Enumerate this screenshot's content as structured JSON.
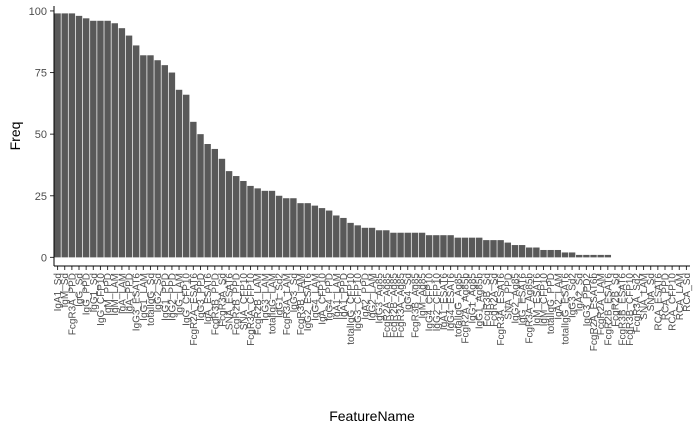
{
  "chart_data": {
    "type": "bar",
    "xlabel": "FeatureName",
    "ylabel": "Freq",
    "ylim": [
      -3.5,
      102
    ],
    "yticks": [
      0,
      25,
      50,
      75,
      100
    ],
    "grid": false,
    "bar_color": "#595959",
    "categories": [
      "IgA1_Sd",
      "IgM_Sd",
      "FcgR3A_PPD",
      "IgG_Sd",
      "IgG_PPD",
      "IgG1_Sd",
      "IgG_CFP10",
      "IgM_PPD",
      "IgM_LAM",
      "IgA_LAM",
      "IgA_PPD",
      "IgG3_ESAT6",
      "IgG1_LAM",
      "totalIgG_Sd",
      "IgG2_Sd",
      "IgG1_PPD",
      "IgG2_PPD",
      "IgG_LAM",
      "IgG_CFP10",
      "FcgR2A_ESAT6",
      "IgG3_PPD",
      "IgA_ESAT6",
      "FcgR3B_PPD",
      "FcgR3A_Sd",
      "SNA_ESAT6",
      "FcgR2B_PPD",
      "SNA_CFP10",
      "FcgR3A_CFP10",
      "FcgR2B_LAM",
      "IgG3_LAM",
      "totalIgG_LAM",
      "IgG1_Sd2",
      "FcgR3A_LAM",
      "IgG3_Sd",
      "FcgR3B_LAM",
      "IgG2_ESAT6",
      "IgG4_LAM",
      "IgA_CFP10",
      "IgG4_PPD",
      "IgA1_LAM",
      "IgA1_PPD",
      "totalIgG_CFP10",
      "IgG3_CFP10",
      "IgA2_PPD",
      "IgG2_LAM",
      "IgG3_Ag85",
      "FcgR2A_Ag85",
      "FcgR2B_Ag85",
      "FcgR3A_Ag85",
      "IgG4_Sd",
      "FcgR3B_Ag85",
      "IgM_Ag85",
      "IgG4_CFP10",
      "IgG2_CFP10",
      "IgA1_ESAT6",
      "IgG4_ESAT6",
      "totalIgG_Ag85",
      "FcgR2A_Ag85b",
      "IgG1_Ag85",
      "IgG1_Ag85b",
      "FcgR3B_Sd",
      "FcgR2A_Sd",
      "FcgR3A_ESAT6",
      "SNA_PPD",
      "IgG2_Ag85",
      "IgG_ESAT6",
      "FcgR3A_Ag85b",
      "IgM_ESAT6",
      "IgM_CFP10",
      "totalIgG_PPD",
      "IgA2_LAM",
      "totalIgG_ESAT6",
      "IgG3_Sd2",
      "IgA2_Sd",
      "IgG3_PPD2",
      "FcgR2A_ESAT6b",
      "FcgR2A_LAM",
      "FcgR2B_ESAT6",
      "FcgR2B_Sd",
      "FcgR3B_ESAT6",
      "FcgR3B_CFP10",
      "FcgR3A_Sd2",
      "SNA_LAM",
      "SNA_Sd",
      "RCA_ESAT6",
      "RCA_PPD",
      "RCA_CFP10",
      "RCA_LAM",
      "RCA_Sd"
    ],
    "values": [
      99,
      99,
      99,
      98,
      97,
      96,
      96,
      96,
      95,
      93,
      90,
      86,
      82,
      82,
      80,
      78,
      75,
      68,
      66,
      55,
      50,
      46,
      44,
      40,
      35,
      33,
      31,
      29,
      28,
      27,
      27,
      25,
      24,
      24,
      22,
      22,
      21,
      20,
      19,
      17,
      16,
      14,
      13,
      12,
      12,
      11,
      11,
      10,
      10,
      10,
      10,
      10,
      9,
      9,
      9,
      9,
      8,
      8,
      8,
      8,
      7,
      7,
      7,
      6,
      5,
      5,
      4,
      4,
      3,
      3,
      3,
      2,
      2,
      1,
      1,
      1,
      1,
      1,
      0,
      0,
      0,
      0,
      0,
      0,
      0,
      0,
      0,
      0,
      0
    ]
  }
}
